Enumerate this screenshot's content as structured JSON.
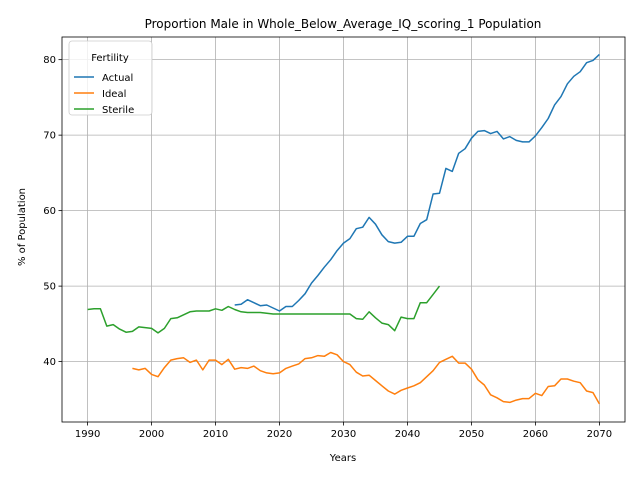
{
  "chart_data": {
    "type": "line",
    "title": "Proportion Male in Whole_Below_Average_IQ_scoring_1 Population",
    "xlabel": "Years",
    "ylabel": "% of Population",
    "xlim": [
      1986,
      2074
    ],
    "ylim": [
      32,
      83
    ],
    "xticks": [
      1990,
      2000,
      2010,
      2020,
      2030,
      2040,
      2050,
      2060,
      2070
    ],
    "yticks": [
      40,
      50,
      60,
      70,
      80
    ],
    "grid": true,
    "legend": {
      "title": "Fertility",
      "placement": "top-left"
    },
    "series": [
      {
        "name": "Actual",
        "color": "#1f77b4",
        "x": [
          2013,
          2014,
          2015,
          2016,
          2017,
          2018,
          2019,
          2020,
          2021,
          2022,
          2023,
          2024,
          2025,
          2026,
          2027,
          2028,
          2029,
          2030,
          2031,
          2032,
          2033,
          2034,
          2035,
          2036,
          2037,
          2038,
          2039,
          2040,
          2041,
          2042,
          2043,
          2044,
          2045,
          2046,
          2047,
          2048,
          2049,
          2050,
          2051,
          2052,
          2053,
          2054,
          2055,
          2056,
          2057,
          2058,
          2059,
          2060,
          2061,
          2062,
          2063,
          2064,
          2065,
          2066,
          2067,
          2068,
          2069,
          2070
        ],
        "y": [
          47.5,
          47.6,
          48.2,
          47.8,
          47.4,
          47.5,
          47.1,
          46.7,
          47.3,
          47.3,
          48.1,
          49.0,
          50.4,
          51.4,
          52.5,
          53.5,
          54.7,
          55.7,
          56.3,
          57.6,
          57.8,
          59.1,
          58.2,
          56.8,
          55.9,
          55.7,
          55.8,
          56.6,
          56.6,
          58.3,
          58.8,
          62.2,
          62.3,
          65.6,
          65.2,
          67.6,
          68.2,
          69.6,
          70.5,
          70.6,
          70.2,
          70.5,
          69.5,
          69.8,
          69.3,
          69.1,
          69.1,
          69.9,
          71.0,
          72.2,
          74.0,
          75.1,
          76.8,
          77.8,
          78.4,
          79.6,
          79.9,
          80.7
        ]
      },
      {
        "name": "Ideal",
        "color": "#ff7f0e",
        "x": [
          1997,
          1998,
          1999,
          2000,
          2001,
          2002,
          2003,
          2004,
          2005,
          2006,
          2007,
          2008,
          2009,
          2010,
          2011,
          2012,
          2013,
          2014,
          2015,
          2016,
          2017,
          2018,
          2019,
          2020,
          2021,
          2022,
          2023,
          2024,
          2025,
          2026,
          2027,
          2028,
          2029,
          2030,
          2031,
          2032,
          2033,
          2034,
          2035,
          2036,
          2037,
          2038,
          2039,
          2040,
          2041,
          2042,
          2043,
          2044,
          2045,
          2046,
          2047,
          2048,
          2049,
          2050,
          2051,
          2052,
          2053,
          2054,
          2055,
          2056,
          2057,
          2058,
          2059,
          2060,
          2061,
          2062,
          2063,
          2064,
          2065,
          2066,
          2067,
          2068,
          2069,
          2070
        ],
        "y": [
          39.1,
          38.9,
          39.1,
          38.3,
          38.0,
          39.2,
          40.2,
          40.4,
          40.5,
          39.9,
          40.2,
          38.9,
          40.2,
          40.2,
          39.6,
          40.3,
          39.0,
          39.2,
          39.1,
          39.4,
          38.8,
          38.5,
          38.4,
          38.5,
          39.1,
          39.4,
          39.7,
          40.4,
          40.5,
          40.8,
          40.7,
          41.2,
          40.9,
          40.0,
          39.6,
          38.6,
          38.1,
          38.2,
          37.5,
          36.8,
          36.1,
          35.7,
          36.2,
          36.5,
          36.8,
          37.2,
          38.0,
          38.8,
          39.9,
          40.3,
          40.7,
          39.8,
          39.8,
          39.0,
          37.6,
          36.9,
          35.6,
          35.2,
          34.7,
          34.6,
          34.9,
          35.1,
          35.1,
          35.8,
          35.5,
          36.7,
          36.8,
          37.7,
          37.7,
          37.4,
          37.2,
          36.1,
          35.9,
          34.4
        ]
      },
      {
        "name": "Sterile",
        "color": "#2ca02c",
        "x": [
          1990,
          1991,
          1992,
          1993,
          1994,
          1995,
          1996,
          1997,
          1998,
          1999,
          2000,
          2001,
          2002,
          2003,
          2004,
          2005,
          2006,
          2007,
          2008,
          2009,
          2010,
          2011,
          2012,
          2013,
          2014,
          2015,
          2016,
          2017,
          2018,
          2019,
          2020,
          2021,
          2022,
          2023,
          2024,
          2025,
          2026,
          2027,
          2028,
          2029,
          2030,
          2031,
          2032,
          2033,
          2034,
          2035,
          2036,
          2037,
          2038,
          2039,
          2040,
          2041,
          2042,
          2043,
          2044,
          2045
        ],
        "y": [
          46.9,
          47.0,
          47.0,
          44.7,
          44.9,
          44.3,
          43.9,
          44.0,
          44.6,
          44.5,
          44.4,
          43.8,
          44.4,
          45.7,
          45.8,
          46.2,
          46.6,
          46.7,
          46.7,
          46.7,
          47.0,
          46.8,
          47.3,
          46.9,
          46.6,
          46.5,
          46.5,
          46.5,
          46.4,
          46.3,
          46.3,
          46.3,
          46.3,
          46.3,
          46.3,
          46.3,
          46.3,
          46.3,
          46.3,
          46.3,
          46.3,
          46.3,
          45.7,
          45.6,
          46.6,
          45.8,
          45.1,
          44.9,
          44.1,
          45.9,
          45.7,
          45.7,
          47.8,
          47.8,
          48.9,
          50.0
        ]
      }
    ]
  }
}
